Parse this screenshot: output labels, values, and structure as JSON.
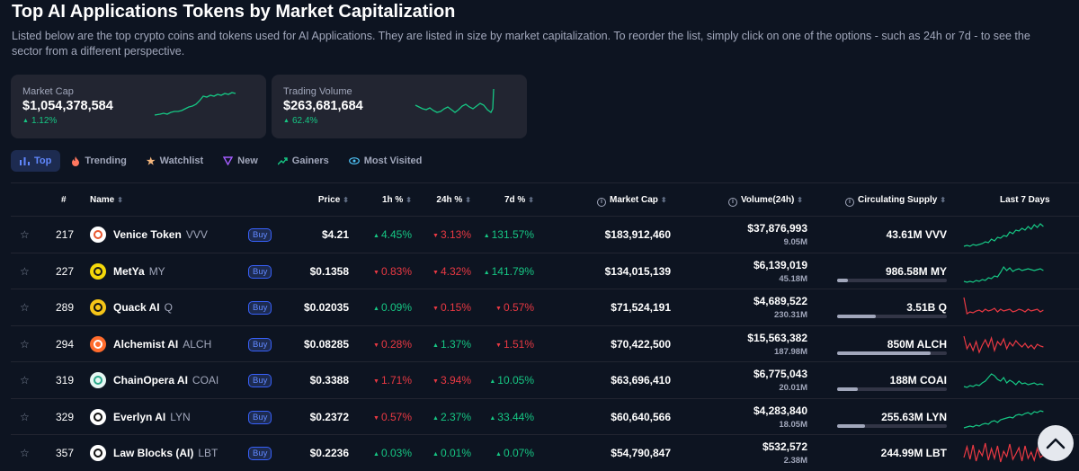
{
  "header": {
    "title": "Top AI Applications Tokens by Market Capitalization",
    "description": "Listed below are the top crypto coins and tokens used for AI Applications. They are listed in size by market capitalization. To reorder the list, simply click on one of the options - such as 24h or 7d - to see the sector from a different perspective."
  },
  "stats": {
    "market_cap": {
      "label": "Market Cap",
      "value": "$1,054,378,584",
      "change": "1.12%"
    },
    "trading_volume": {
      "label": "Trading Volume",
      "value": "$263,681,684",
      "change": "62.4%"
    }
  },
  "tabs": [
    {
      "label": "Top",
      "icon": "bar-chart-icon"
    },
    {
      "label": "Trending",
      "icon": "flame-icon"
    },
    {
      "label": "Watchlist",
      "icon": "star-icon"
    },
    {
      "label": "New",
      "icon": "sparkle-icon"
    },
    {
      "label": "Gainers",
      "icon": "trend-up-icon"
    },
    {
      "label": "Most Visited",
      "icon": "eye-icon"
    }
  ],
  "table": {
    "columns": {
      "rank": "#",
      "name": "Name",
      "price": "Price",
      "h1": "1h %",
      "h24": "24h %",
      "d7": "7d %",
      "market_cap": "Market Cap",
      "volume": "Volume(24h)",
      "supply": "Circulating Supply",
      "last7": "Last 7 Days"
    },
    "buy_label": "Buy",
    "rows": [
      {
        "rank": "217",
        "name": "Venice Token",
        "symbol": "VVV",
        "price": "$4.21",
        "h1": "4.45%",
        "h1_dir": "up",
        "h24": "3.13%",
        "h24_dir": "down",
        "d7": "131.57%",
        "d7_dir": "up",
        "market_cap": "$183,912,460",
        "volume": "$37,876,993",
        "volume_sub": "9.05M",
        "supply": "43.61M VVV",
        "supply_fill": null,
        "trend": "up",
        "logo_color": "#ffffff",
        "logo_fg": "#e8562f"
      },
      {
        "rank": "227",
        "name": "MetYa",
        "symbol": "MY",
        "price": "$0.1358",
        "h1": "0.83%",
        "h1_dir": "down",
        "h24": "4.32%",
        "h24_dir": "down",
        "d7": "141.79%",
        "d7_dir": "up",
        "market_cap": "$134,015,139",
        "volume": "$6,139,019",
        "volume_sub": "45.18M",
        "supply": "986.58M MY",
        "supply_fill": 0.1,
        "trend": "up",
        "logo_color": "#f5d90a",
        "logo_fg": "#1a1a1a"
      },
      {
        "rank": "289",
        "name": "Quack AI",
        "symbol": "Q",
        "price": "$0.02035",
        "h1": "0.09%",
        "h1_dir": "up",
        "h24": "0.15%",
        "h24_dir": "down",
        "d7": "0.57%",
        "d7_dir": "down",
        "market_cap": "$71,524,191",
        "volume": "$4,689,522",
        "volume_sub": "230.31M",
        "supply": "3.51B Q",
        "supply_fill": 0.35,
        "trend": "down",
        "logo_color": "#f5c518",
        "logo_fg": "#111111"
      },
      {
        "rank": "294",
        "name": "Alchemist AI",
        "symbol": "ALCH",
        "price": "$0.08285",
        "h1": "0.28%",
        "h1_dir": "down",
        "h24": "1.37%",
        "h24_dir": "up",
        "d7": "1.51%",
        "d7_dir": "down",
        "market_cap": "$70,422,500",
        "volume": "$15,563,382",
        "volume_sub": "187.98M",
        "supply": "850M ALCH",
        "supply_fill": 0.85,
        "trend": "down",
        "logo_color": "#ff6b2c",
        "logo_fg": "#ffffff"
      },
      {
        "rank": "319",
        "name": "ChainOpera AI",
        "symbol": "COAI",
        "price": "$0.3388",
        "h1": "1.71%",
        "h1_dir": "down",
        "h24": "3.94%",
        "h24_dir": "down",
        "d7": "10.05%",
        "d7_dir": "up",
        "market_cap": "$63,696,410",
        "volume": "$6,775,043",
        "volume_sub": "20.01M",
        "supply": "188M COAI",
        "supply_fill": 0.19,
        "trend": "up",
        "logo_color": "#e6f7f3",
        "logo_fg": "#2aa88a"
      },
      {
        "rank": "329",
        "name": "Everlyn AI",
        "symbol": "LYN",
        "price": "$0.2372",
        "h1": "0.57%",
        "h1_dir": "down",
        "h24": "2.37%",
        "h24_dir": "up",
        "d7": "33.44%",
        "d7_dir": "up",
        "market_cap": "$60,640,566",
        "volume": "$4,283,840",
        "volume_sub": "18.05M",
        "supply": "255.63M LYN",
        "supply_fill": 0.25,
        "trend": "up",
        "logo_color": "#ffffff",
        "logo_fg": "#111111"
      },
      {
        "rank": "357",
        "name": "Law Blocks (AI)",
        "symbol": "LBT",
        "price": "$0.2236",
        "h1": "0.03%",
        "h1_dir": "up",
        "h24": "0.01%",
        "h24_dir": "up",
        "d7": "0.07%",
        "d7_dir": "up",
        "market_cap": "$54,790,847",
        "volume": "$532,572",
        "volume_sub": "2.38M",
        "supply": "244.99M LBT",
        "supply_fill": null,
        "trend": "noisy",
        "logo_color": "#ffffff",
        "logo_fg": "#111111"
      }
    ]
  },
  "colors": {
    "up": "#16c784",
    "down": "#ea3943",
    "accent": "#6188ff",
    "bg": "#0d1421",
    "card": "#222531"
  }
}
